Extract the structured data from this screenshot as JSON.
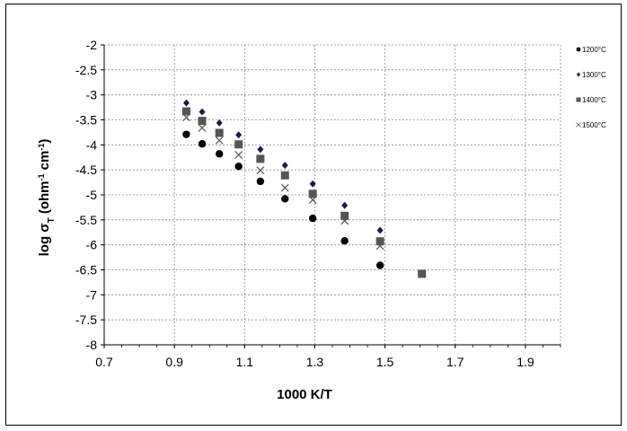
{
  "chart_data": {
    "type": "scatter",
    "title": "",
    "xlabel": "1000 K/T",
    "ylabel_parts": {
      "a": "log σ",
      "b": "T",
      "c": " (ohm",
      "d": "-1",
      "e": " cm",
      "f": "-1",
      "g": ")"
    },
    "xlim": [
      0.7,
      2.0
    ],
    "ylim": [
      -8,
      -2
    ],
    "x_ticks": [
      0.7,
      0.9,
      1.1,
      1.3,
      1.5,
      1.7,
      1.9
    ],
    "x_tick_labels": [
      "0.7",
      "0.9",
      "1.1",
      "1.3",
      "1.5",
      "1.7",
      "1.9"
    ],
    "y_ticks": [
      -2,
      -2.5,
      -3,
      -3.5,
      -4,
      -4.5,
      -5,
      -5.5,
      -6,
      -6.5,
      -7,
      -7.5,
      -8
    ],
    "y_tick_labels": [
      "-2",
      "-2.5",
      "-3",
      "-3.5",
      "-4",
      "-4.5",
      "-5",
      "-5.5",
      "-6",
      "-6.5",
      "-7",
      "-7.5",
      "-8"
    ],
    "grid": true,
    "legend_position": "top-right",
    "series": [
      {
        "name": "1200°C",
        "marker": "circle",
        "color": "#000000",
        "points": [
          {
            "x": 0.934,
            "y": -3.79
          },
          {
            "x": 0.979,
            "y": -3.98
          },
          {
            "x": 1.028,
            "y": -4.18
          },
          {
            "x": 1.083,
            "y": -4.43
          },
          {
            "x": 1.145,
            "y": -4.73
          },
          {
            "x": 1.215,
            "y": -5.08
          },
          {
            "x": 1.294,
            "y": -5.47
          },
          {
            "x": 1.385,
            "y": -5.92
          },
          {
            "x": 1.486,
            "y": -6.41
          }
        ]
      },
      {
        "name": "1300°C",
        "marker": "diamond",
        "color": "#1a1a4d",
        "points": [
          {
            "x": 0.934,
            "y": -3.16
          },
          {
            "x": 0.979,
            "y": -3.34
          },
          {
            "x": 1.028,
            "y": -3.56
          },
          {
            "x": 1.083,
            "y": -3.8
          },
          {
            "x": 1.145,
            "y": -4.09
          },
          {
            "x": 1.215,
            "y": -4.41
          },
          {
            "x": 1.294,
            "y": -4.78
          },
          {
            "x": 1.385,
            "y": -5.21
          },
          {
            "x": 1.486,
            "y": -5.71
          }
        ]
      },
      {
        "name": "1400°C",
        "marker": "square",
        "color": "#555555",
        "points": [
          {
            "x": 0.934,
            "y": -3.33
          },
          {
            "x": 0.979,
            "y": -3.52
          },
          {
            "x": 1.028,
            "y": -3.76
          },
          {
            "x": 1.083,
            "y": -3.99
          },
          {
            "x": 1.145,
            "y": -4.28
          },
          {
            "x": 1.215,
            "y": -4.61
          },
          {
            "x": 1.294,
            "y": -4.98
          },
          {
            "x": 1.385,
            "y": -5.42
          },
          {
            "x": 1.486,
            "y": -5.93
          },
          {
            "x": 1.605,
            "y": -6.58
          }
        ]
      },
      {
        "name": "1500°C",
        "marker": "x",
        "color": "#555555",
        "points": [
          {
            "x": 0.934,
            "y": -3.45
          },
          {
            "x": 0.979,
            "y": -3.66
          },
          {
            "x": 1.028,
            "y": -3.91
          },
          {
            "x": 1.083,
            "y": -4.2
          },
          {
            "x": 1.145,
            "y": -4.51
          },
          {
            "x": 1.215,
            "y": -4.86
          },
          {
            "x": 1.294,
            "y": -5.1
          },
          {
            "x": 1.385,
            "y": -5.52
          },
          {
            "x": 1.486,
            "y": -6.02
          }
        ]
      }
    ]
  }
}
